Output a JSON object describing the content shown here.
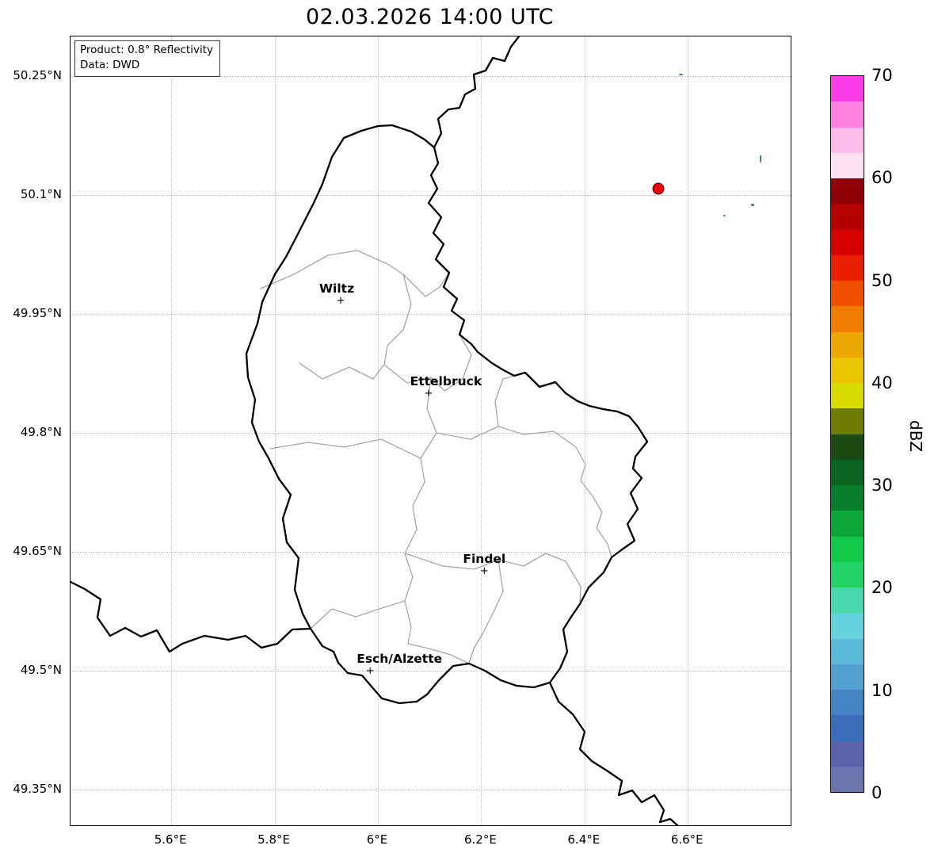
{
  "title": "02.03.2026 14:00 UTC",
  "info_box": {
    "line1": "Product: 0.8° Reflectivity",
    "line2": "Data: DWD"
  },
  "axes": {
    "lon_range": [
      5.405,
      6.799
    ],
    "lat_range": [
      49.305,
      50.3
    ],
    "lon_ticks": [
      {
        "label": "5.6°E",
        "value": 5.6
      },
      {
        "label": "5.8°E",
        "value": 5.8
      },
      {
        "label": "6°E",
        "value": 6.0
      },
      {
        "label": "6.2°E",
        "value": 6.2
      },
      {
        "label": "6.4°E",
        "value": 6.4
      },
      {
        "label": "6.6°E",
        "value": 6.6
      }
    ],
    "lat_ticks": [
      {
        "label": "50.25°N",
        "value": 50.25
      },
      {
        "label": "50.1°N",
        "value": 50.1
      },
      {
        "label": "49.95°N",
        "value": 49.95
      },
      {
        "label": "49.8°N",
        "value": 49.8
      },
      {
        "label": "49.65°N",
        "value": 49.65
      },
      {
        "label": "49.5°N",
        "value": 49.5
      },
      {
        "label": "49.35°N",
        "value": 49.35
      }
    ]
  },
  "colorbar": {
    "label": "dBZ",
    "min": 0,
    "max": 70,
    "ticks": [
      {
        "label": "0",
        "value": 0
      },
      {
        "label": "10",
        "value": 10
      },
      {
        "label": "20",
        "value": 20
      },
      {
        "label": "30",
        "value": 30
      },
      {
        "label": "40",
        "value": 40
      },
      {
        "label": "50",
        "value": 50
      },
      {
        "label": "60",
        "value": 60
      },
      {
        "label": "70",
        "value": 70
      }
    ],
    "colors_bottom_to_top": [
      "#6a74ad",
      "#5964ab",
      "#3b6cba",
      "#4583c2",
      "#52a0ce",
      "#5cb9d9",
      "#65d2de",
      "#49d8ae",
      "#23d266",
      "#12c94a",
      "#0ba839",
      "#087d2a",
      "#0a6420",
      "#1c4a12",
      "#6c7c04",
      "#dadc00",
      "#e9c400",
      "#eda702",
      "#f07d00",
      "#f04f00",
      "#ea1e00",
      "#d60000",
      "#b50000",
      "#8f0008",
      "#ffe2f2",
      "#ffbceb",
      "#ff82e2",
      "#fb3ae8"
    ]
  },
  "cities": [
    {
      "name": "Wiltz",
      "lon": 5.928,
      "lat": 49.966,
      "label_dx": -5
    },
    {
      "name": "Ettelbruck",
      "lon": 6.098,
      "lat": 49.849,
      "label_dx": 22
    },
    {
      "name": "Findel",
      "lon": 6.206,
      "lat": 49.625,
      "label_dx": 0
    },
    {
      "name": "Esch/Alzette",
      "lon": 5.985,
      "lat": 49.499,
      "label_dx": 37
    }
  ],
  "markers": {
    "red_dot": {
      "lon": 6.543,
      "lat": 50.108,
      "color": "#e8000e"
    }
  },
  "echoes": [
    {
      "lon": 6.586,
      "lat": 50.252,
      "w": 5,
      "h": 2
    },
    {
      "lon": 6.74,
      "lat": 50.146,
      "w": 2,
      "h": 9
    },
    {
      "lon": 6.726,
      "lat": 50.088,
      "w": 4,
      "h": 3
    },
    {
      "lon": 6.671,
      "lat": 50.074,
      "w": 3,
      "h": 2
    }
  ],
  "map_colors": {
    "national_border": "#000000",
    "canton_border": "#a6a6a6",
    "grid": "#b9b9b9",
    "echo": "#3d7fbf"
  }
}
